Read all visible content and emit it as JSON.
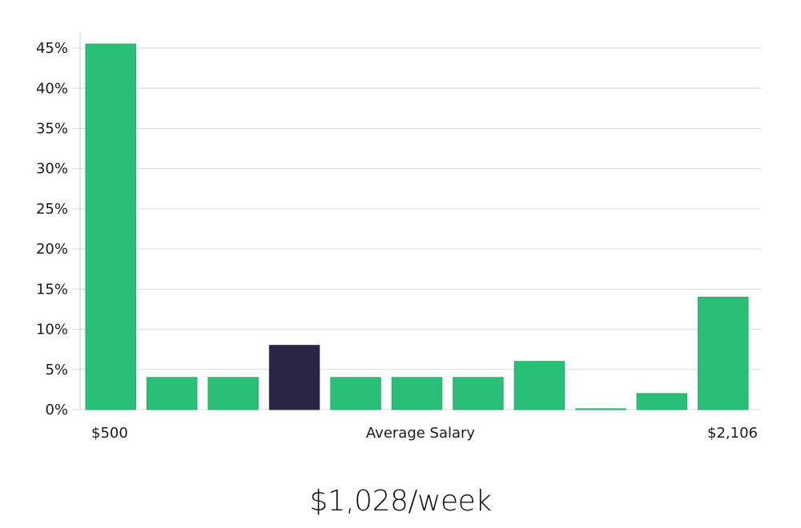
{
  "chart_data": {
    "type": "bar",
    "values": [
      45.5,
      4,
      4,
      8,
      4,
      4,
      4,
      6,
      0.1,
      2,
      14
    ],
    "highlight_index": 3,
    "ylim": [
      0,
      47
    ],
    "y_ticks": [
      0,
      5,
      10,
      15,
      20,
      25,
      30,
      35,
      40,
      45
    ],
    "y_tick_labels": [
      "0%",
      "5%",
      "10%",
      "15%",
      "20%",
      "25%",
      "30%",
      "35%",
      "40%",
      "45%"
    ],
    "x_min_label": "$500",
    "xlabel": "Average Salary",
    "x_max_label": "$2,106",
    "grid": true,
    "colors": {
      "bar": "#29bf76",
      "bar_stroke": "#1fae68",
      "highlight": "#2a2645",
      "grid": "#d9d9d9",
      "axis": "#cccccc"
    }
  },
  "average_label": "$1,028/week"
}
